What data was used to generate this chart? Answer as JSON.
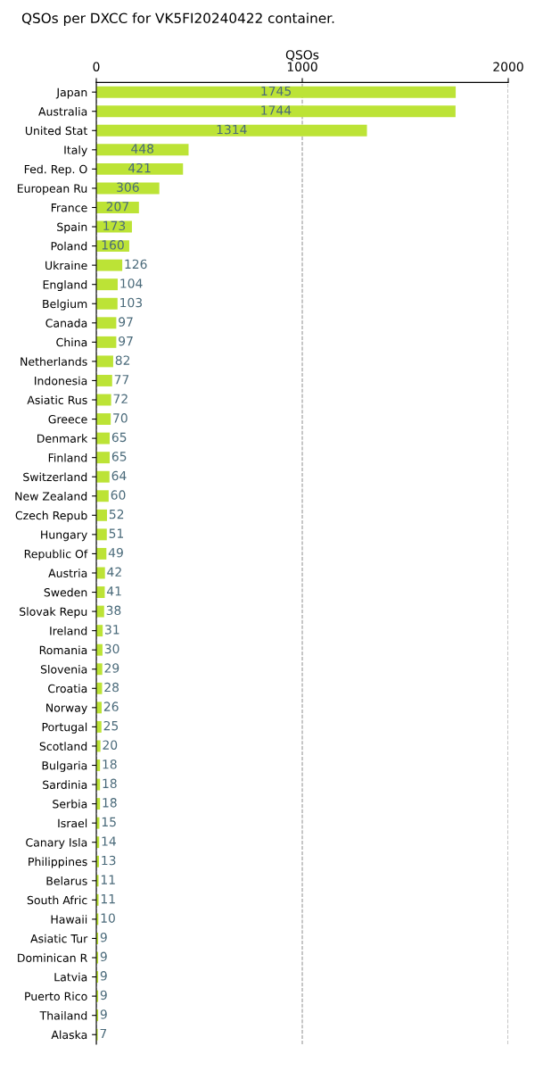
{
  "chart_data": {
    "type": "bar",
    "orientation": "horizontal",
    "title": "QSOs per DXCC for VK5FI20240422 container.",
    "xlabel": "QSOs",
    "categories": [
      "Japan",
      "Australia",
      "United Stat",
      "Italy",
      "Fed. Rep. O",
      "European Ru",
      "France",
      "Spain",
      "Poland",
      "Ukraine",
      "England",
      "Belgium",
      "Canada",
      "China",
      "Netherlands",
      "Indonesia",
      "Asiatic Rus",
      "Greece",
      "Denmark",
      "Finland",
      "Switzerland",
      "New Zealand",
      "Czech Repub",
      "Hungary",
      "Republic Of",
      "Austria",
      "Sweden",
      "Slovak Repu",
      "Ireland",
      "Romania",
      "Slovenia",
      "Croatia",
      "Norway",
      "Portugal",
      "Scotland",
      "Bulgaria",
      "Sardinia",
      "Serbia",
      "Israel",
      "Canary Isla",
      "Philippines",
      "Belarus",
      "South Afric",
      "Hawaii",
      "Asiatic Tur",
      "Dominican R",
      "Latvia",
      "Puerto Rico",
      "Thailand",
      "Alaska"
    ],
    "values": [
      1745,
      1744,
      1314,
      448,
      421,
      306,
      207,
      173,
      160,
      126,
      104,
      103,
      97,
      97,
      82,
      77,
      72,
      70,
      65,
      65,
      64,
      60,
      52,
      51,
      49,
      42,
      41,
      38,
      31,
      30,
      29,
      28,
      26,
      25,
      20,
      18,
      18,
      18,
      15,
      14,
      13,
      11,
      11,
      10,
      9,
      9,
      9,
      9,
      9,
      7
    ],
    "color": "#bce336",
    "xlim": [
      0,
      2000
    ],
    "xticks": [
      0,
      1000,
      2000
    ],
    "grid": "x",
    "data_labels": true
  }
}
